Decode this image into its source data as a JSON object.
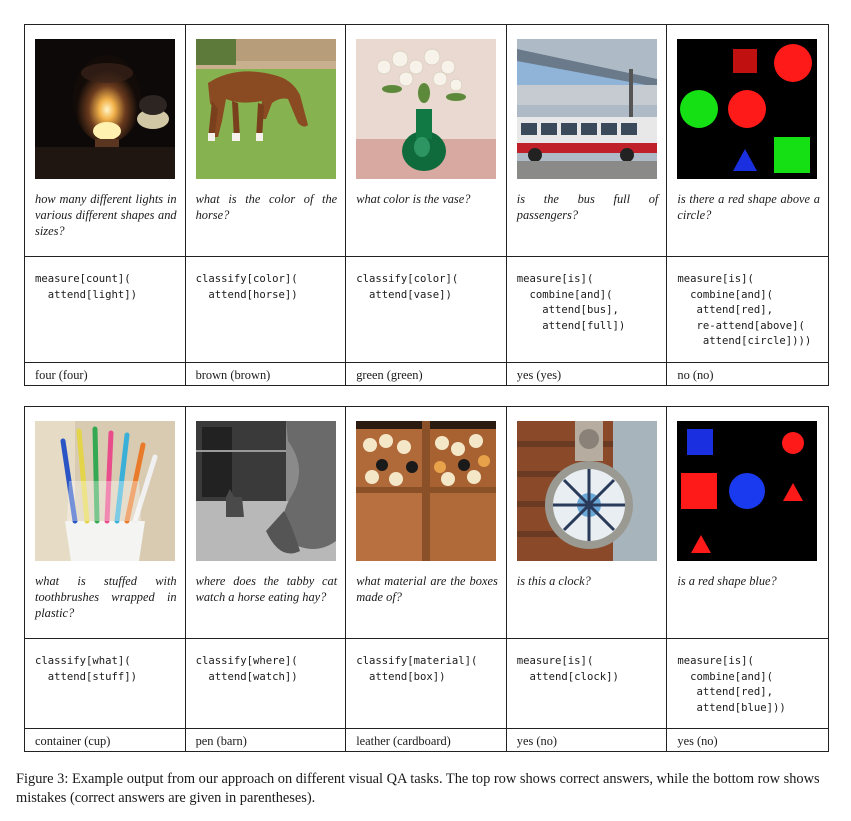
{
  "figure_label": "Figure 3:",
  "caption_text": "Example output from our approach on different visual QA tasks. The top row shows correct answers, while the bottom row shows mistakes (correct answers are given in parentheses).",
  "top_row": [
    {
      "image_icon": "lamp-photo",
      "question": "how many different lights in various different shapes and sizes?",
      "program": "measure[count](\n  attend[light])",
      "answer": "four (four)"
    },
    {
      "image_icon": "horse-photo",
      "question": "what is the color of the horse?",
      "program": "classify[color](\n  attend[horse])",
      "answer": "brown (brown)"
    },
    {
      "image_icon": "vase-photo",
      "question": "what color is the vase?",
      "program": "classify[color](\n  attend[vase])",
      "answer": "green (green)"
    },
    {
      "image_icon": "bus-photo",
      "question": "is the bus full of passengers?",
      "program": "measure[is](\n  combine[and](\n    attend[bus],\n    attend[full])",
      "answer": "yes (yes)"
    },
    {
      "image_icon": "shapes-image",
      "question": "is there a red shape above a circle?",
      "program": "measure[is](\n  combine[and](\n   attend[red],\n   re-attend[above](\n    attend[circle])))",
      "answer": "no (no)"
    }
  ],
  "bottom_row": [
    {
      "image_icon": "toothbrushes-photo",
      "question": "what is stuffed with toothbrushes wrapped in plastic?",
      "program": "classify[what](\n  attend[stuff])",
      "answer": "container (cup)"
    },
    {
      "image_icon": "cat-horse-photo",
      "question": "where does the tabby cat watch a horse eating hay?",
      "program": "classify[where](\n  attend[watch])",
      "answer": "pen (barn)"
    },
    {
      "image_icon": "chicks-boxes-photo",
      "question": "what material are the boxes made of?",
      "program": "classify[material](\n  attend[box])",
      "answer": "leather (cardboard)"
    },
    {
      "image_icon": "clock-photo",
      "question": "is this a clock?",
      "program": "measure[is](\n  attend[clock])",
      "answer": "yes (no)"
    },
    {
      "image_icon": "shapes-image",
      "question": "is a red shape blue?",
      "program": "measure[is](\n  combine[and](\n   attend[red],\n   attend[blue]))",
      "answer": "yes (no)"
    }
  ]
}
